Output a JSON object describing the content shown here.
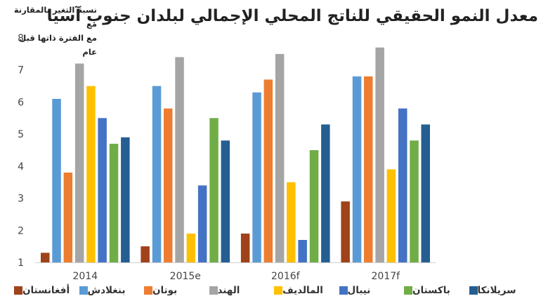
{
  "title": "معدل النمو الحقيقي للناتج المحلي الإجمالي لبلدان جنوب آسيا",
  "ylabel_lines": [
    "نسبة التغير بالمقارنة مع",
    "مع الفترة ذاتها قبل عام"
  ],
  "chart_data": {
    "type": "bar",
    "title": "معدل النمو الحقيقي للناتج المحلي الإجمالي لبلدان جنوب آسيا",
    "ylabel": "نسبة التغير بالمقارنة مع مع الفترة ذاتها قبل عام",
    "xlabel": "",
    "categories": [
      "2014",
      "2015e",
      "2016f",
      "2017f"
    ],
    "ylim": [
      1,
      8
    ],
    "yticks": [
      1,
      2,
      3,
      4,
      5,
      6,
      7,
      8
    ],
    "grid": false,
    "legend_position": "bottom",
    "series": [
      {
        "name": "أفغانستان",
        "color": "#A0421A",
        "values": [
          1.3,
          1.5,
          1.9,
          2.9
        ]
      },
      {
        "name": "بنغلادش",
        "color": "#5B9BD5",
        "values": [
          6.1,
          6.5,
          6.3,
          6.8
        ]
      },
      {
        "name": "بوتان",
        "color": "#ED7D31",
        "values": [
          3.8,
          5.8,
          6.7,
          6.8
        ]
      },
      {
        "name": "الهند",
        "color": "#A5A5A5",
        "values": [
          7.2,
          7.4,
          7.5,
          7.7
        ]
      },
      {
        "name": "المالديف",
        "color": "#FFC000",
        "values": [
          6.5,
          1.9,
          3.5,
          3.9
        ]
      },
      {
        "name": "نيبال",
        "color": "#4472C4",
        "values": [
          5.5,
          3.4,
          1.7,
          5.8
        ]
      },
      {
        "name": "باكستان",
        "color": "#70AD47",
        "values": [
          4.7,
          5.5,
          4.5,
          4.8
        ]
      },
      {
        "name": "سريلانكا",
        "color": "#255E91",
        "values": [
          4.9,
          4.8,
          5.3,
          5.3
        ]
      }
    ]
  }
}
